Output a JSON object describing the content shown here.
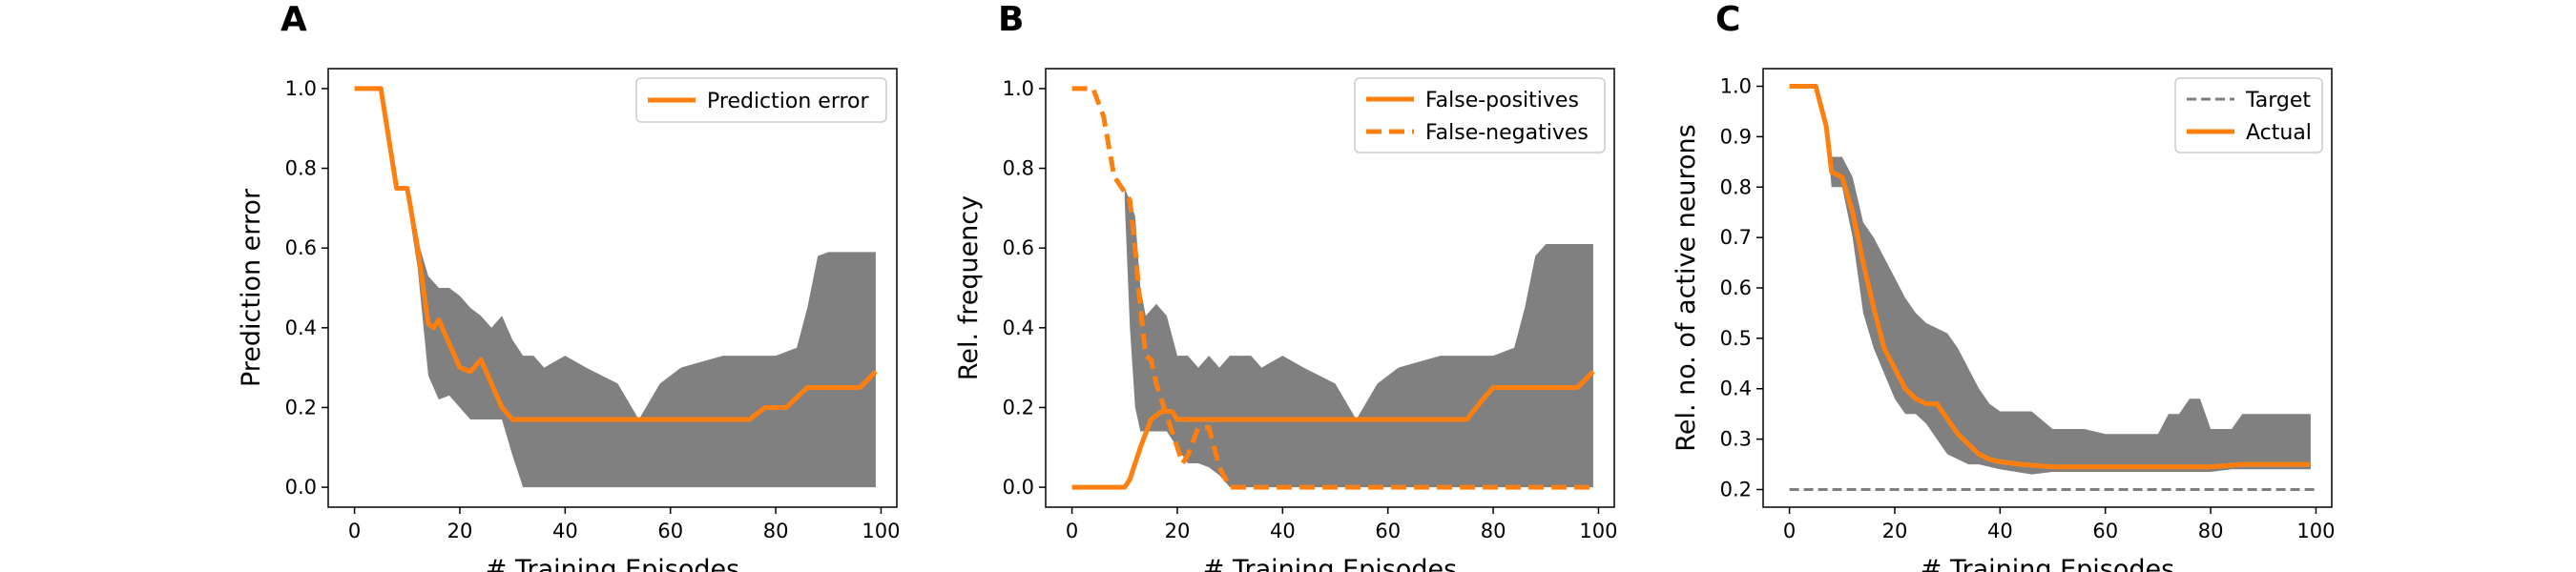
{
  "chart_data": [
    {
      "type": "line",
      "panel_label": "A",
      "xlabel": "# Training Episodes",
      "ylabel": "Prediction error",
      "xlim": [
        -5,
        103
      ],
      "ylim": [
        -0.05,
        1.05
      ],
      "xticks": [
        0,
        20,
        40,
        60,
        80,
        100
      ],
      "yticks": [
        0.0,
        0.2,
        0.4,
        0.6,
        0.8,
        1.0
      ],
      "ytick_labels": [
        "0.0",
        "0.2",
        "0.4",
        "0.6",
        "0.8",
        "1.0"
      ],
      "legend": "top-right",
      "series": [
        {
          "name": "Prediction error",
          "color": "#ff7f0e",
          "style": "solid",
          "x": [
            0,
            5,
            8,
            10,
            12,
            14,
            15,
            16,
            18,
            20,
            22,
            24,
            26,
            28,
            30,
            40,
            50,
            60,
            70,
            75,
            78,
            82,
            86,
            90,
            96,
            99
          ],
          "y": [
            1.0,
            1.0,
            0.75,
            0.75,
            0.6,
            0.41,
            0.4,
            0.42,
            0.36,
            0.3,
            0.29,
            0.32,
            0.26,
            0.2,
            0.17,
            0.17,
            0.17,
            0.17,
            0.17,
            0.17,
            0.2,
            0.2,
            0.25,
            0.25,
            0.25,
            0.29
          ]
        }
      ],
      "band": {
        "color": "#808080",
        "x": [
          10,
          12,
          14,
          16,
          18,
          20,
          22,
          24,
          26,
          28,
          30,
          32,
          34,
          36,
          40,
          44,
          50,
          54,
          58,
          62,
          70,
          80,
          84,
          86,
          88,
          90,
          99
        ],
        "upper": [
          0.75,
          0.62,
          0.53,
          0.5,
          0.5,
          0.48,
          0.45,
          0.43,
          0.4,
          0.43,
          0.37,
          0.33,
          0.33,
          0.3,
          0.33,
          0.3,
          0.26,
          0.17,
          0.26,
          0.3,
          0.33,
          0.33,
          0.35,
          0.45,
          0.58,
          0.59,
          0.59
        ],
        "lower": [
          0.72,
          0.55,
          0.28,
          0.22,
          0.23,
          0.2,
          0.17,
          0.17,
          0.17,
          0.17,
          0.08,
          0.0,
          0.0,
          0.0,
          0.0,
          0.0,
          0.0,
          0.0,
          0.0,
          0.0,
          0.0,
          0.0,
          0.0,
          0.0,
          0.0,
          0.0,
          0.0
        ]
      }
    },
    {
      "type": "line",
      "panel_label": "B",
      "xlabel": "# Training Episodes",
      "ylabel": "Rel. frequency",
      "xlim": [
        -5,
        103
      ],
      "ylim": [
        -0.05,
        1.05
      ],
      "xticks": [
        0,
        20,
        40,
        60,
        80,
        100
      ],
      "yticks": [
        0.0,
        0.2,
        0.4,
        0.6,
        0.8,
        1.0
      ],
      "ytick_labels": [
        "0.0",
        "0.2",
        "0.4",
        "0.6",
        "0.8",
        "1.0"
      ],
      "legend": "top-right",
      "series": [
        {
          "name": "False-positives",
          "color": "#ff7f0e",
          "style": "solid",
          "x": [
            0,
            10,
            11,
            13,
            15,
            17,
            19,
            20,
            21,
            30,
            40,
            50,
            60,
            70,
            75,
            78,
            80,
            88,
            96,
            99
          ],
          "y": [
            0.0,
            0.0,
            0.02,
            0.1,
            0.17,
            0.19,
            0.19,
            0.17,
            0.17,
            0.17,
            0.17,
            0.17,
            0.17,
            0.17,
            0.17,
            0.22,
            0.25,
            0.25,
            0.25,
            0.29
          ]
        },
        {
          "name": "False-negatives",
          "color": "#ff7f0e",
          "style": "dashed",
          "x": [
            0,
            4,
            6,
            8,
            10,
            11,
            12,
            13,
            14,
            15,
            16,
            18,
            20,
            21,
            22,
            24,
            26,
            28,
            30,
            32,
            40,
            60,
            80,
            99
          ],
          "y": [
            1.0,
            1.0,
            0.93,
            0.78,
            0.74,
            0.72,
            0.6,
            0.45,
            0.33,
            0.32,
            0.26,
            0.18,
            0.1,
            0.06,
            0.08,
            0.15,
            0.15,
            0.05,
            0.0,
            0.0,
            0.0,
            0.0,
            0.0,
            0.0
          ]
        }
      ],
      "band": {
        "color": "#808080",
        "x": [
          10,
          11,
          12,
          13,
          14,
          16,
          18,
          20,
          22,
          24,
          26,
          28,
          30,
          32,
          34,
          36,
          40,
          44,
          50,
          54,
          58,
          62,
          70,
          80,
          84,
          86,
          88,
          90,
          99
        ],
        "upper": [
          0.75,
          0.72,
          0.68,
          0.5,
          0.43,
          0.46,
          0.43,
          0.33,
          0.33,
          0.3,
          0.33,
          0.3,
          0.33,
          0.33,
          0.33,
          0.3,
          0.33,
          0.3,
          0.26,
          0.17,
          0.26,
          0.3,
          0.33,
          0.33,
          0.35,
          0.45,
          0.58,
          0.61,
          0.61
        ],
        "lower": [
          0.72,
          0.4,
          0.2,
          0.14,
          0.14,
          0.14,
          0.14,
          0.1,
          0.06,
          0.06,
          0.05,
          0.03,
          0.0,
          0.0,
          0.0,
          0.0,
          0.0,
          0.0,
          0.0,
          0.0,
          0.0,
          0.0,
          0.0,
          0.0,
          0.0,
          0.0,
          0.0,
          0.0,
          0.0
        ]
      }
    },
    {
      "type": "line",
      "panel_label": "C",
      "xlabel": "# Training Episodes",
      "ylabel": "Rel. no. of active neurons",
      "xlim": [
        -5,
        103
      ],
      "ylim": [
        0.165,
        1.035
      ],
      "xticks": [
        0,
        20,
        40,
        60,
        80,
        100
      ],
      "yticks": [
        0.2,
        0.3,
        0.4,
        0.5,
        0.6,
        0.7,
        0.8,
        0.9,
        1.0
      ],
      "ytick_labels": [
        "0.2",
        "0.3",
        "0.4",
        "0.5",
        "0.6",
        "0.7",
        "0.8",
        "0.9",
        "1.0"
      ],
      "legend": "top-right",
      "series": [
        {
          "name": "Target",
          "color": "#7f7f7f",
          "style": "dashed",
          "x": [
            0,
            100
          ],
          "y": [
            0.2,
            0.2
          ]
        },
        {
          "name": "Actual",
          "color": "#ff7f0e",
          "style": "solid",
          "x": [
            0,
            5,
            7,
            8,
            10,
            12,
            14,
            16,
            18,
            20,
            22,
            24,
            26,
            28,
            30,
            32,
            34,
            36,
            38,
            40,
            44,
            50,
            60,
            70,
            80,
            86,
            90,
            99
          ],
          "y": [
            1.0,
            1.0,
            0.92,
            0.83,
            0.82,
            0.75,
            0.65,
            0.56,
            0.48,
            0.44,
            0.4,
            0.38,
            0.37,
            0.37,
            0.34,
            0.31,
            0.29,
            0.27,
            0.26,
            0.255,
            0.25,
            0.245,
            0.245,
            0.245,
            0.245,
            0.25,
            0.25,
            0.25
          ]
        }
      ],
      "band": {
        "color": "#808080",
        "x": [
          7,
          8,
          10,
          12,
          14,
          16,
          18,
          20,
          22,
          24,
          26,
          28,
          30,
          32,
          34,
          36,
          38,
          40,
          46,
          50,
          56,
          60,
          66,
          70,
          72,
          74,
          76,
          78,
          80,
          84,
          86,
          88,
          92,
          99
        ],
        "upper": [
          0.92,
          0.86,
          0.86,
          0.82,
          0.73,
          0.7,
          0.66,
          0.62,
          0.58,
          0.55,
          0.53,
          0.52,
          0.51,
          0.48,
          0.44,
          0.4,
          0.37,
          0.355,
          0.355,
          0.32,
          0.32,
          0.31,
          0.31,
          0.31,
          0.35,
          0.35,
          0.38,
          0.38,
          0.32,
          0.32,
          0.35,
          0.35,
          0.35,
          0.35
        ],
        "lower": [
          0.92,
          0.8,
          0.8,
          0.7,
          0.55,
          0.48,
          0.43,
          0.38,
          0.35,
          0.35,
          0.33,
          0.3,
          0.27,
          0.26,
          0.25,
          0.25,
          0.245,
          0.24,
          0.23,
          0.235,
          0.235,
          0.235,
          0.235,
          0.235,
          0.235,
          0.235,
          0.235,
          0.235,
          0.235,
          0.24,
          0.24,
          0.24,
          0.24,
          0.24
        ]
      }
    }
  ]
}
